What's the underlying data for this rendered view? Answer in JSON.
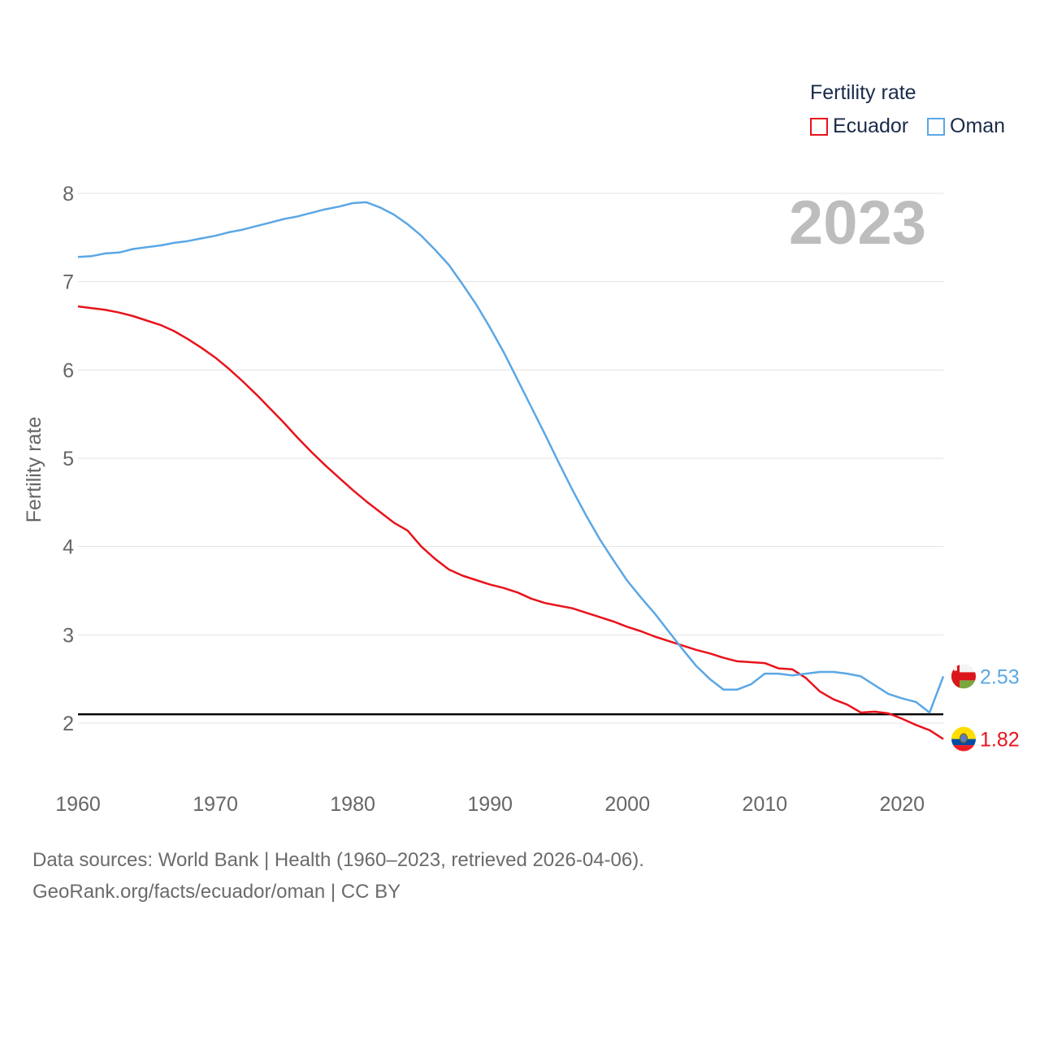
{
  "chart_data": {
    "type": "line",
    "title": "Fertility rate",
    "ylabel": "Fertility rate",
    "xlabel": "",
    "xlim": [
      1960,
      2023
    ],
    "ylim": [
      1.5,
      8.2
    ],
    "x_ticks": [
      1960,
      1970,
      1980,
      1990,
      2000,
      2010,
      2020
    ],
    "y_ticks": [
      2,
      3,
      4,
      5,
      6,
      7,
      8
    ],
    "year_label": "2023",
    "replacement_level": 2.1,
    "legend_position": "top-right",
    "x": [
      1960,
      1961,
      1962,
      1963,
      1964,
      1965,
      1966,
      1967,
      1968,
      1969,
      1970,
      1971,
      1972,
      1973,
      1974,
      1975,
      1976,
      1977,
      1978,
      1979,
      1980,
      1981,
      1982,
      1983,
      1984,
      1985,
      1986,
      1987,
      1988,
      1989,
      1990,
      1991,
      1992,
      1993,
      1994,
      1995,
      1996,
      1997,
      1998,
      1999,
      2000,
      2001,
      2002,
      2003,
      2004,
      2005,
      2006,
      2007,
      2008,
      2009,
      2010,
      2011,
      2012,
      2013,
      2014,
      2015,
      2016,
      2017,
      2018,
      2019,
      2020,
      2021,
      2022,
      2023
    ],
    "series": [
      {
        "name": "Ecuador",
        "color": "#e8131b",
        "end_label": "1.82",
        "values": [
          6.72,
          6.7,
          6.68,
          6.65,
          6.61,
          6.56,
          6.51,
          6.44,
          6.35,
          6.25,
          6.14,
          6.01,
          5.87,
          5.72,
          5.56,
          5.4,
          5.23,
          5.07,
          4.92,
          4.78,
          4.64,
          4.51,
          4.39,
          4.27,
          4.18,
          4.0,
          3.86,
          3.74,
          3.67,
          3.62,
          3.57,
          3.53,
          3.48,
          3.41,
          3.36,
          3.33,
          3.3,
          3.25,
          3.2,
          3.15,
          3.09,
          3.04,
          2.98,
          2.93,
          2.88,
          2.83,
          2.79,
          2.74,
          2.7,
          2.69,
          2.68,
          2.62,
          2.61,
          2.51,
          2.36,
          2.27,
          2.21,
          2.12,
          2.13,
          2.11,
          2.05,
          1.98,
          1.92,
          1.82
        ]
      },
      {
        "name": "Oman",
        "color": "#5ba7e5",
        "end_label": "2.53",
        "values": [
          7.28,
          7.29,
          7.32,
          7.33,
          7.37,
          7.39,
          7.41,
          7.44,
          7.46,
          7.49,
          7.52,
          7.56,
          7.59,
          7.63,
          7.67,
          7.71,
          7.74,
          7.78,
          7.82,
          7.85,
          7.89,
          7.9,
          7.84,
          7.76,
          7.65,
          7.52,
          7.36,
          7.19,
          6.97,
          6.74,
          6.48,
          6.2,
          5.89,
          5.58,
          5.27,
          4.95,
          4.64,
          4.35,
          4.08,
          3.84,
          3.61,
          3.42,
          3.24,
          3.04,
          2.84,
          2.65,
          2.5,
          2.38,
          2.38,
          2.44,
          2.56,
          2.56,
          2.54,
          2.56,
          2.58,
          2.58,
          2.56,
          2.53,
          2.43,
          2.33,
          2.28,
          2.24,
          2.12,
          2.53
        ]
      }
    ]
  },
  "source_line1": "Data sources: World Bank | Health (1960–2023, retrieved 2026-04-06).",
  "source_line2": "GeoRank.org/facts/ecuador/oman | CC BY"
}
